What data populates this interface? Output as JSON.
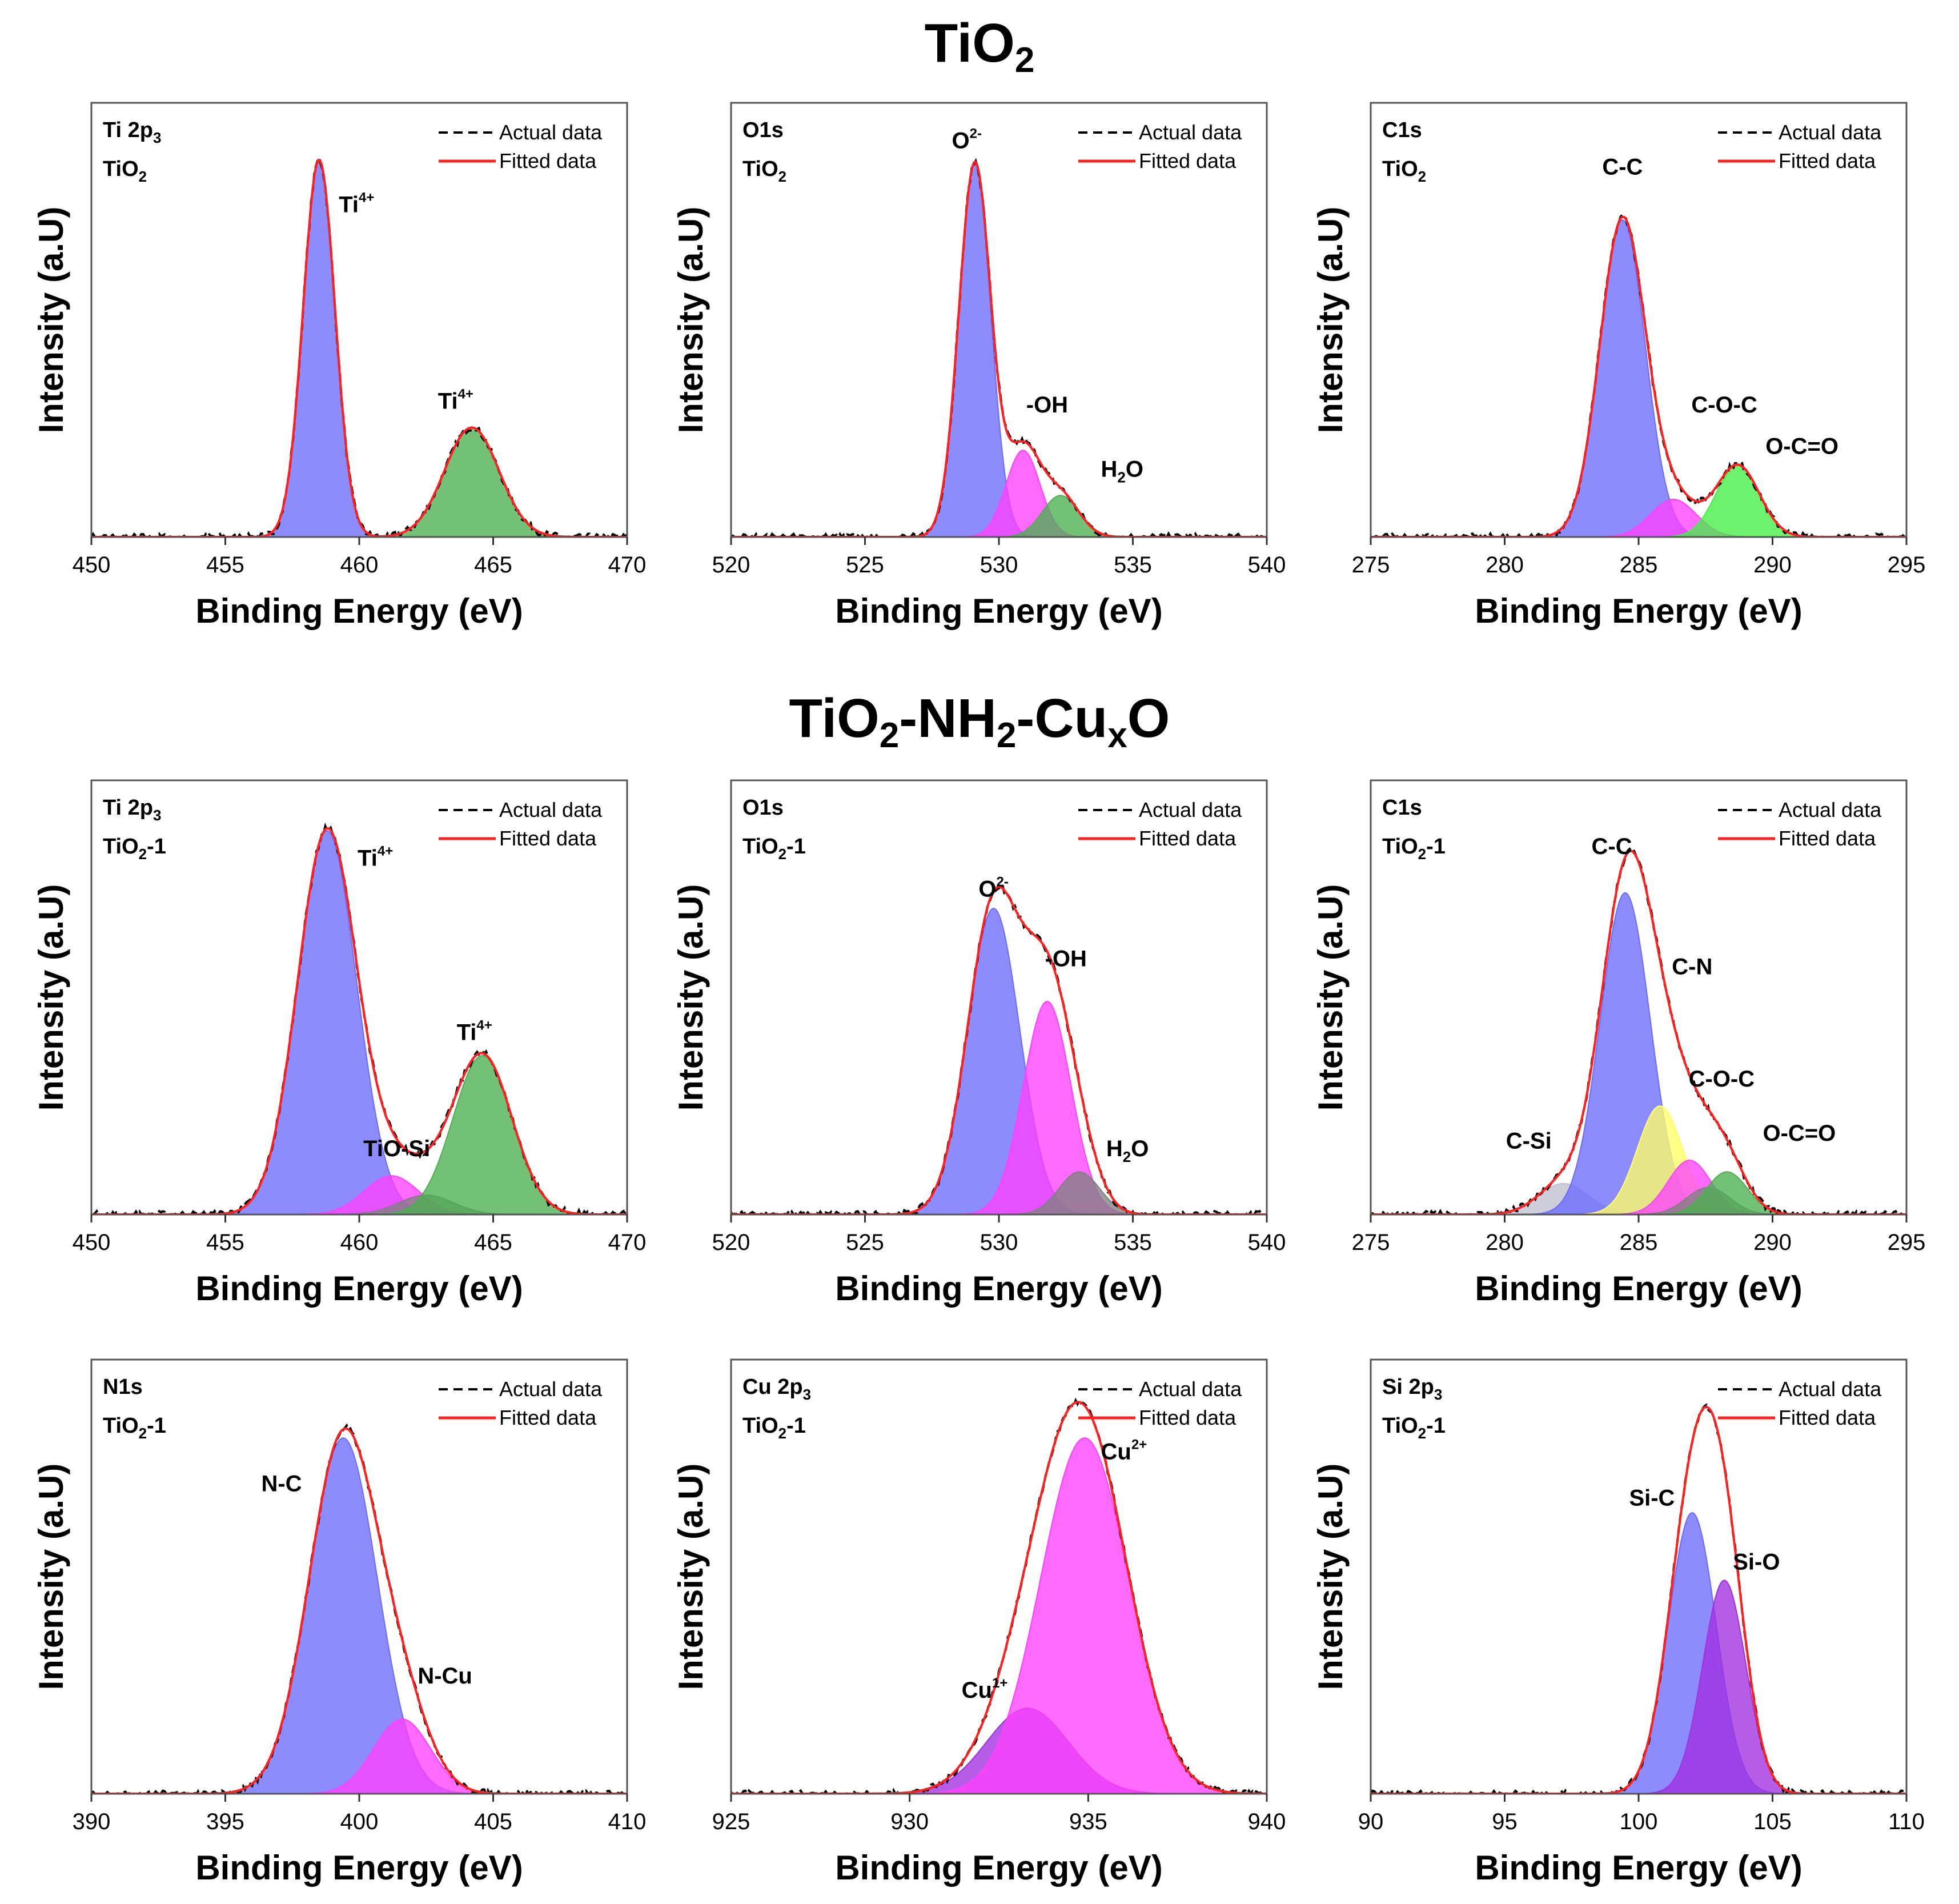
{
  "titles": {
    "top": {
      "main": "TiO",
      "sub": "2"
    },
    "middle": {
      "parts": [
        "TiO",
        "2",
        "-NH",
        "2",
        "-Cu",
        "x",
        "O"
      ]
    }
  },
  "legend": {
    "actual": "Actual data",
    "fitted": "Fitted data"
  },
  "colors": {
    "blue": "#6b6bff",
    "green": "#4caf50",
    "brightgreen": "#44ee44",
    "magenta": "#ff40ff",
    "purple": "#a030e0",
    "gray": "#808080",
    "yellow": "#ffff66",
    "lightgray": "#c0c0d0",
    "fit": "#ff2020",
    "actual": "#000000"
  },
  "chart_data": [
    {
      "type": "area",
      "title": "Ti 2p3",
      "element": "Ti 2p",
      "element_sub": "3",
      "sample": "TiO",
      "sample_sub": "2",
      "sample_suffix": "",
      "xlabel": "Binding Energy (eV)",
      "ylabel": "Intensity (a.U)",
      "xlim": [
        450,
        470
      ],
      "xticks": [
        450,
        455,
        460,
        465,
        470
      ],
      "ylim": [
        0,
        1.15
      ],
      "components": [
        {
          "center": 458.5,
          "height": 1.0,
          "fwhm": 1.4,
          "color": "blue"
        },
        {
          "center": 464.2,
          "height": 0.29,
          "fwhm": 2.4,
          "color": "green"
        }
      ],
      "labels": [
        {
          "text": "Ti",
          "sup": "4+",
          "x": 459.9,
          "y": 0.86
        },
        {
          "text": "Ti",
          "sup": "4+",
          "x": 463.6,
          "y": 0.34
        }
      ]
    },
    {
      "type": "area",
      "title": "O1s",
      "element": "O1s",
      "element_sub": "",
      "sample": "TiO",
      "sample_sub": "2",
      "sample_suffix": "",
      "xlabel": "Binding Energy (eV)",
      "ylabel": "Intensity (a.U)",
      "xlim": [
        520,
        540
      ],
      "xticks": [
        520,
        525,
        530,
        535,
        540
      ],
      "ylim": [
        0,
        1.15
      ],
      "components": [
        {
          "center": 529.1,
          "height": 0.99,
          "fwhm": 1.4,
          "color": "blue"
        },
        {
          "center": 530.9,
          "height": 0.23,
          "fwhm": 1.5,
          "color": "magenta"
        },
        {
          "center": 532.3,
          "height": 0.11,
          "fwhm": 1.6,
          "color": "green"
        }
      ],
      "labels": [
        {
          "text": "O",
          "sup": "2-",
          "x": 528.8,
          "y": 1.03
        },
        {
          "text": "-OH",
          "sup": "",
          "x": 531.8,
          "y": 0.33
        },
        {
          "text": "H",
          "sub": "2",
          "after": "O",
          "x": 534.6,
          "y": 0.16
        }
      ]
    },
    {
      "type": "area",
      "title": "C1s",
      "element": "C1s",
      "element_sub": "",
      "sample": "TiO",
      "sample_sub": "2",
      "sample_suffix": "",
      "xlabel": "Binding Energy (eV)",
      "ylabel": "Intensity (a.U)",
      "xlim": [
        275,
        295
      ],
      "xticks": [
        275,
        280,
        285,
        290,
        295
      ],
      "ylim": [
        0,
        1.15
      ],
      "components": [
        {
          "center": 284.4,
          "height": 0.84,
          "fwhm": 2.0,
          "color": "blue"
        },
        {
          "center": 286.3,
          "height": 0.1,
          "fwhm": 2.0,
          "color": "magenta"
        },
        {
          "center": 288.7,
          "height": 0.19,
          "fwhm": 1.9,
          "color": "brightgreen"
        }
      ],
      "labels": [
        {
          "text": "C-C",
          "sup": "",
          "x": 284.4,
          "y": 0.96
        },
        {
          "text": "C-O-C",
          "sup": "",
          "x": 288.2,
          "y": 0.33
        },
        {
          "text": "O-C=O",
          "sup": "",
          "x": 291.1,
          "y": 0.22
        }
      ]
    },
    {
      "type": "area",
      "title": "Ti 2p3",
      "element": "Ti 2p",
      "element_sub": "3",
      "sample": "TiO",
      "sample_sub": "2",
      "sample_suffix": "-1",
      "xlabel": "Binding Energy (eV)",
      "ylabel": "Intensity (a.U)",
      "xlim": [
        450,
        470
      ],
      "xticks": [
        450,
        455,
        460,
        465,
        470
      ],
      "ylim": [
        0,
        1.12
      ],
      "components": [
        {
          "center": 458.8,
          "height": 0.99,
          "fwhm": 2.6,
          "color": "blue"
        },
        {
          "center": 461.2,
          "height": 0.1,
          "fwhm": 2.4,
          "color": "magenta"
        },
        {
          "center": 462.5,
          "height": 0.05,
          "fwhm": 2.4,
          "color": "gray"
        },
        {
          "center": 464.6,
          "height": 0.41,
          "fwhm": 2.6,
          "color": "green"
        }
      ],
      "labels": [
        {
          "text": "Ti",
          "sup": "4+",
          "x": 460.6,
          "y": 0.9
        },
        {
          "text": "TiO-Si",
          "sup": "",
          "x": 461.4,
          "y": 0.15
        },
        {
          "text": "Ti",
          "sup": "4+",
          "x": 464.3,
          "y": 0.45
        }
      ]
    },
    {
      "type": "area",
      "title": "O1s",
      "element": "O1s",
      "element_sub": "",
      "sample": "TiO",
      "sample_sub": "2",
      "sample_suffix": "-1",
      "xlabel": "Binding Energy (eV)",
      "ylabel": "Intensity (a.U)",
      "xlim": [
        520,
        540
      ],
      "xticks": [
        520,
        525,
        530,
        535,
        540
      ],
      "ylim": [
        0,
        1.12
      ],
      "components": [
        {
          "center": 529.8,
          "height": 0.79,
          "fwhm": 2.3,
          "color": "blue"
        },
        {
          "center": 531.8,
          "height": 0.55,
          "fwhm": 2.1,
          "color": "magenta"
        },
        {
          "center": 533.0,
          "height": 0.11,
          "fwhm": 1.8,
          "color": "gray"
        }
      ],
      "labels": [
        {
          "text": "O",
          "sup": "2-",
          "x": 529.8,
          "y": 0.82
        },
        {
          "text": "-OH",
          "sup": "",
          "x": 532.5,
          "y": 0.64
        },
        {
          "text": "H",
          "sub": "2",
          "after": "O",
          "x": 534.8,
          "y": 0.15
        }
      ]
    },
    {
      "type": "area",
      "title": "C1s",
      "element": "C1s",
      "element_sub": "",
      "sample": "TiO",
      "sample_sub": "2",
      "sample_suffix": "-1",
      "xlabel": "Binding Energy (eV)",
      "ylabel": "Intensity (a.U)",
      "xlim": [
        275,
        295
      ],
      "xticks": [
        275,
        280,
        285,
        290,
        295
      ],
      "ylim": [
        0,
        1.12
      ],
      "components": [
        {
          "center": 282.2,
          "height": 0.08,
          "fwhm": 2.2,
          "color": "lightgray"
        },
        {
          "center": 284.5,
          "height": 0.83,
          "fwhm": 2.2,
          "color": "blue"
        },
        {
          "center": 285.8,
          "height": 0.28,
          "fwhm": 2.0,
          "color": "yellow"
        },
        {
          "center": 286.9,
          "height": 0.14,
          "fwhm": 1.9,
          "color": "magenta"
        },
        {
          "center": 287.6,
          "height": 0.07,
          "fwhm": 1.9,
          "color": "gray"
        },
        {
          "center": 288.3,
          "height": 0.11,
          "fwhm": 1.8,
          "color": "green"
        }
      ],
      "labels": [
        {
          "text": "C-C",
          "sup": "",
          "x": 284.0,
          "y": 0.93
        },
        {
          "text": "C-N",
          "sup": "",
          "x": 287.0,
          "y": 0.62
        },
        {
          "text": "C-O-C",
          "sup": "",
          "x": 288.1,
          "y": 0.33
        },
        {
          "text": "C-Si",
          "sup": "",
          "x": 280.9,
          "y": 0.17
        },
        {
          "text": "O-C=O",
          "sup": "",
          "x": 291.0,
          "y": 0.19
        }
      ]
    },
    {
      "type": "area",
      "title": "N1s",
      "element": "N1s",
      "element_sub": "",
      "sample": "TiO",
      "sample_sub": "2",
      "sample_suffix": "-1",
      "xlabel": "Binding Energy (eV)",
      "ylabel": "Intensity (a.U)",
      "xlim": [
        390,
        410
      ],
      "xticks": [
        390,
        395,
        400,
        405,
        410
      ],
      "ylim": [
        0,
        1.22
      ],
      "components": [
        {
          "center": 399.4,
          "height": 1.0,
          "fwhm": 3.0,
          "color": "blue"
        },
        {
          "center": 401.6,
          "height": 0.21,
          "fwhm": 2.5,
          "color": "magenta"
        }
      ],
      "labels": [
        {
          "text": "N-C",
          "sup": "",
          "x": 397.1,
          "y": 0.85
        },
        {
          "text": "N-Cu",
          "sup": "",
          "x": 403.2,
          "y": 0.31
        }
      ]
    },
    {
      "type": "area",
      "title": "Cu 2p3",
      "element": "Cu 2p",
      "element_sub": "3",
      "sample": "TiO",
      "sample_sub": "2",
      "sample_suffix": "-1",
      "xlabel": "Binding Energy (eV)",
      "ylabel": "Intensity (a.U)",
      "xlim": [
        925,
        940
      ],
      "xticks": [
        925,
        930,
        935,
        940
      ],
      "ylim": [
        0,
        1.22
      ],
      "components": [
        {
          "center": 933.3,
          "height": 0.24,
          "fwhm": 2.7,
          "color": "purple"
        },
        {
          "center": 934.9,
          "height": 1.0,
          "fwhm": 2.9,
          "color": "magenta"
        }
      ],
      "labels": [
        {
          "text": "Cu",
          "sup": "1+",
          "x": 932.1,
          "y": 0.27
        },
        {
          "text": "Cu",
          "sup": "2+",
          "x": 936.0,
          "y": 0.94
        }
      ]
    },
    {
      "type": "area",
      "title": "Si 2p3",
      "element": "Si 2p",
      "element_sub": "3",
      "sample": "TiO",
      "sample_sub": "2",
      "sample_suffix": "-1",
      "xlabel": "Binding Energy (eV)",
      "ylabel": "Intensity (a.U)",
      "xlim": [
        90,
        110
      ],
      "xticks": [
        90,
        95,
        100,
        105,
        110
      ],
      "ylim": [
        0,
        1.22
      ],
      "components": [
        {
          "center": 102.0,
          "height": 0.79,
          "fwhm": 2.1,
          "color": "blue"
        },
        {
          "center": 103.2,
          "height": 0.6,
          "fwhm": 1.9,
          "color": "purple"
        }
      ],
      "labels": [
        {
          "text": "Si-C",
          "sup": "",
          "x": 100.5,
          "y": 0.81
        },
        {
          "text": "Si-O",
          "sup": "",
          "x": 104.4,
          "y": 0.63
        }
      ]
    }
  ]
}
